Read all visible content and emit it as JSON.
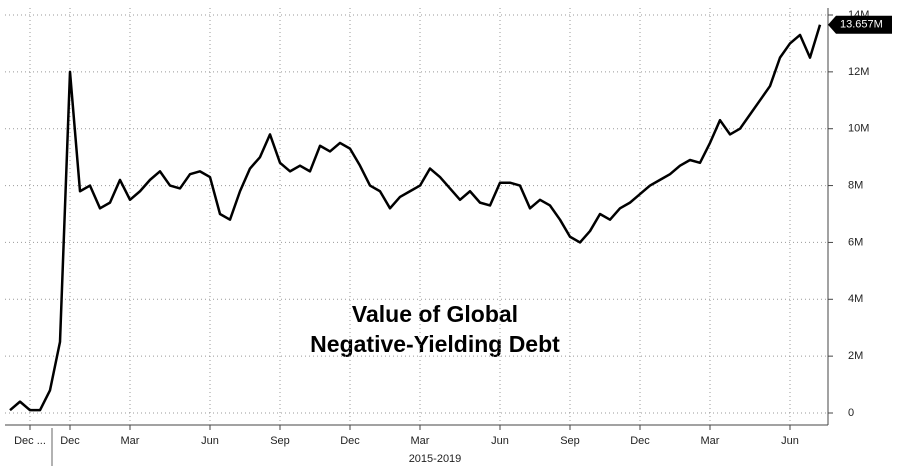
{
  "chart_data": {
    "type": "line",
    "title_lines": [
      "Value of Global",
      "Negative-Yielding Debt"
    ],
    "x_label": "2015-2019",
    "categories": [
      null,
      null,
      "Dec ...",
      null,
      null,
      null,
      "Dec",
      null,
      null,
      null,
      null,
      null,
      "Mar",
      null,
      null,
      null,
      null,
      null,
      null,
      null,
      "Jun",
      null,
      null,
      null,
      null,
      null,
      null,
      "Sep",
      null,
      null,
      null,
      null,
      null,
      null,
      "Dec",
      null,
      null,
      null,
      null,
      null,
      null,
      "Mar",
      null,
      null,
      null,
      null,
      null,
      null,
      null,
      "Jun",
      null,
      null,
      null,
      null,
      null,
      null,
      "Sep",
      null,
      null,
      null,
      null,
      null,
      null,
      "Dec",
      null,
      null,
      null,
      null,
      null,
      null,
      "Mar",
      null,
      null,
      null,
      null,
      null,
      null,
      null,
      "Jun",
      null,
      null,
      null
    ],
    "values": [
      0.1,
      0.4,
      0.1,
      0.1,
      0.8,
      2.5,
      12.0,
      7.8,
      8.0,
      7.2,
      7.4,
      8.2,
      7.5,
      7.8,
      8.2,
      8.5,
      8.0,
      7.9,
      8.4,
      8.5,
      8.3,
      7.0,
      6.8,
      7.8,
      8.6,
      9.0,
      9.8,
      8.8,
      8.5,
      8.7,
      8.5,
      9.4,
      9.2,
      9.5,
      9.3,
      8.7,
      8.0,
      7.8,
      7.2,
      7.6,
      7.8,
      8.0,
      8.6,
      8.3,
      7.9,
      7.5,
      7.8,
      7.4,
      7.3,
      8.1,
      8.1,
      8.0,
      7.2,
      7.5,
      7.3,
      6.8,
      6.2,
      6.0,
      6.4,
      7.0,
      6.8,
      7.2,
      7.4,
      7.7,
      8.0,
      8.2,
      8.4,
      8.7,
      8.9,
      8.8,
      9.5,
      10.3,
      9.8,
      10.0,
      10.5,
      11.0,
      11.5,
      12.5,
      13.0,
      13.3,
      12.5,
      13.657
    ],
    "color": "#000000",
    "current_value": {
      "value": 13.657,
      "label": "13.657M"
    },
    "ylim": [
      0,
      14
    ],
    "yticks": [
      0,
      {
        "value": 2,
        "label": "2M"
      },
      {
        "value": 4,
        "label": "4M"
      },
      {
        "value": 6,
        "label": "6M"
      },
      {
        "value": 8,
        "label": "8M"
      },
      {
        "value": 10,
        "label": "10M"
      },
      {
        "value": 12,
        "label": "12M"
      },
      {
        "value": 14,
        "label": "14M"
      }
    ],
    "grid": true
  }
}
